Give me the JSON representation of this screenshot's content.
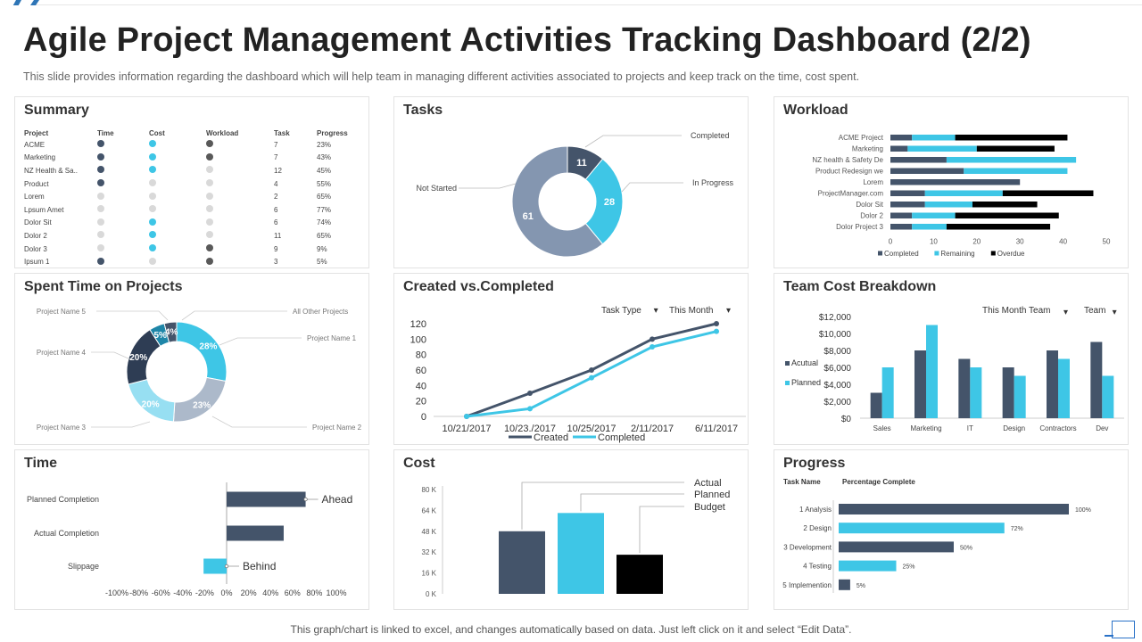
{
  "page": {
    "title": "Agile Project Management Activities Tracking Dashboard (2/2)",
    "subtitle": "This slide provides  information  regarding  the  dashboard  which will help team in managing different  activities associated to projects and keep track on the time, cost spent.",
    "footer": "This graph/chart is linked to excel,  and changes automatically based on data. Just left click on it and select “Edit Data”."
  },
  "colors": {
    "dark": "#44546a",
    "light": "#3ec6e6",
    "black": "#000000",
    "grey": "#d9d9d9",
    "darkdot": "#595959",
    "steel": "#8496b0",
    "navy": "#2e3d54"
  },
  "panels": {
    "summary": "Summary",
    "tasks": "Tasks",
    "workload": "Workload",
    "spent": "Spent Time on Projects",
    "created": "Created vs.Completed",
    "teamcost": "Team Cost Breakdown",
    "time": "Time",
    "cost": "Cost",
    "progress": "Progress"
  },
  "summary": {
    "headers": [
      "Project",
      "Time",
      "Cost",
      "Workload",
      "Task",
      "Progress"
    ],
    "rows": [
      {
        "project": "ACME",
        "time": "dark",
        "cost": "light",
        "workload": "darkdot",
        "task": "7",
        "progress": "23%"
      },
      {
        "project": "Marketing",
        "time": "dark",
        "cost": "light",
        "workload": "darkdot",
        "task": "7",
        "progress": "43%"
      },
      {
        "project": "NZ Health & Sa..",
        "time": "dark",
        "cost": "light",
        "workload": "grey",
        "task": "12",
        "progress": "45%"
      },
      {
        "project": "Product",
        "time": "dark",
        "cost": "grey",
        "workload": "grey",
        "task": "4",
        "progress": "55%"
      },
      {
        "project": "Lorem",
        "time": "grey",
        "cost": "grey",
        "workload": "grey",
        "task": "2",
        "progress": "65%"
      },
      {
        "project": "Lpsum Amet",
        "time": "grey",
        "cost": "grey",
        "workload": "grey",
        "task": "6",
        "progress": "77%"
      },
      {
        "project": "Dolor Sit",
        "time": "grey",
        "cost": "light",
        "workload": "grey",
        "task": "6",
        "progress": "74%"
      },
      {
        "project": "Dolor 2",
        "time": "grey",
        "cost": "light",
        "workload": "grey",
        "task": "11",
        "progress": "65%"
      },
      {
        "project": "Dolor 3",
        "time": "grey",
        "cost": "light",
        "workload": "darkdot",
        "task": "9",
        "progress": "9%"
      },
      {
        "project": "Ipsum 1",
        "time": "dark",
        "cost": "grey",
        "workload": "darkdot",
        "task": "3",
        "progress": "5%"
      }
    ]
  },
  "chart_data": [
    {
      "id": "tasks",
      "type": "pie",
      "donut": true,
      "title": "Tasks",
      "slices": [
        {
          "label": "Completed",
          "value": 11,
          "color": "#44546a"
        },
        {
          "label": "In Progress",
          "value": 28,
          "color": "#3ec6e6"
        },
        {
          "label": "Not Started",
          "value": 61,
          "color": "#8496b0"
        }
      ]
    },
    {
      "id": "workload",
      "type": "bar",
      "orientation": "horizontal",
      "stacked": true,
      "title": "Workload",
      "categories": [
        "ACME Project",
        "Marketing",
        "NZ health & Safety De",
        "Product Redesign we",
        "Lorem",
        "ProjectManager.com",
        "Dolor Sit",
        "Dolor 2",
        "Dolor Project 3"
      ],
      "series": [
        {
          "name": "Completed",
          "color": "#44546a",
          "values": [
            5,
            4,
            13,
            17,
            30,
            8,
            8,
            5,
            5
          ]
        },
        {
          "name": "Remaining",
          "color": "#3ec6e6",
          "values": [
            10,
            16,
            30,
            24,
            0,
            18,
            11,
            10,
            8
          ]
        },
        {
          "name": "Overdue",
          "color": "#000000",
          "values": [
            26,
            18,
            0,
            0,
            0,
            21,
            15,
            24,
            24
          ]
        }
      ],
      "xlim": [
        0,
        50
      ],
      "xticks": [
        "0",
        "10",
        "20",
        "30",
        "40",
        "50"
      ]
    },
    {
      "id": "spent",
      "type": "pie",
      "donut": true,
      "title": "Spent Time on Projects",
      "slices": [
        {
          "label": "Project Name 1",
          "value": 28,
          "text": "28%",
          "color": "#3ec6e6"
        },
        {
          "label": "Project Name 2",
          "value": 23,
          "text": "23%",
          "color": "#acb9ca"
        },
        {
          "label": "Project Name 3",
          "value": 20,
          "text": "20%",
          "color": "#97dff2"
        },
        {
          "label": "Project Name 4",
          "value": 20,
          "text": "20%",
          "color": "#2e3d54"
        },
        {
          "label": "Project Name 5",
          "value": 5,
          "text": "5%",
          "color": "#1e86a8"
        },
        {
          "label": "All Other Projects",
          "value": 4,
          "text": "4%",
          "color": "#44546a"
        }
      ]
    },
    {
      "id": "created",
      "type": "line",
      "title": "Created vs.Completed",
      "categories": [
        "10/21/2017",
        "10/23./2017",
        "10/25/2017",
        "2/11/2017",
        "6/11/2017"
      ],
      "x": [
        0,
        1,
        2,
        3,
        4
      ],
      "series": [
        {
          "name": "Created",
          "color": "#44546a",
          "values": [
            0,
            30,
            60,
            100,
            120
          ]
        },
        {
          "name": "Completed",
          "color": "#3ec6e6",
          "values": [
            0,
            10,
            50,
            90,
            110
          ]
        }
      ],
      "xpositions": [
        0,
        0.98,
        2.0,
        2.98,
        3.98
      ],
      "ylim": [
        0,
        120
      ],
      "yticks": [
        "0",
        "20",
        "40",
        "60",
        "80",
        "100",
        "120"
      ],
      "filters": [
        "Task Type",
        "This Month"
      ]
    },
    {
      "id": "teamcost",
      "type": "bar",
      "title": "Team Cost Breakdown",
      "categories": [
        "Sales",
        "Marketing",
        "IT",
        "Design",
        "Contractors",
        "Dev"
      ],
      "series": [
        {
          "name": "Acutual",
          "color": "#44546a",
          "values": [
            3000,
            8000,
            7000,
            6000,
            8000,
            9000
          ]
        },
        {
          "name": "Planned",
          "color": "#3ec6e6",
          "values": [
            6000,
            11000,
            6000,
            5000,
            7000,
            5000
          ]
        }
      ],
      "ylim": [
        0,
        12000
      ],
      "yticks": [
        "$0",
        "$2,000",
        "$4,000",
        "$6,000",
        "$8,000",
        "$10,000",
        "$12,000"
      ],
      "filters": [
        "This Month Team",
        "Team"
      ]
    },
    {
      "id": "time",
      "type": "bar",
      "orientation": "horizontal",
      "title": "Time",
      "categories": [
        "Planned Completion",
        "Actual Completion",
        "Slippage"
      ],
      "values": [
        72,
        52,
        -21
      ],
      "colors": [
        "#44546a",
        "#44546a",
        "#3ec6e6"
      ],
      "annotations": [
        {
          "row": 0,
          "text": "Ahead"
        },
        {
          "row": 2,
          "text": "Behind"
        }
      ],
      "xlim": [
        -100,
        100
      ],
      "xticks": [
        "-100%",
        "-80%",
        "-60%",
        "-40%",
        "-20%",
        "0%",
        "20%",
        "40%",
        "60%",
        "80%",
        "100%"
      ]
    },
    {
      "id": "cost",
      "type": "bar",
      "title": "Cost",
      "categories": [
        "Actual",
        "Planned",
        "Budget"
      ],
      "values": [
        48000,
        62000,
        30000
      ],
      "colors": [
        "#44546a",
        "#3ec6e6",
        "#000000"
      ],
      "ylim": [
        0,
        80000
      ],
      "yticks": [
        "0 K",
        "16 K",
        "32 K",
        "48 K",
        "64 K",
        "80 K"
      ]
    },
    {
      "id": "progress",
      "type": "bar",
      "orientation": "horizontal",
      "title": "Progress",
      "columns": [
        "Task Name",
        "Percentage Complete"
      ],
      "categories": [
        "1 Analysis",
        "2 Design",
        "3 Development",
        "4 Testing",
        "5 Implemention"
      ],
      "values": [
        100,
        72,
        50,
        25,
        5
      ],
      "labels": [
        "100%",
        "72%",
        "50%",
        "25%",
        "5%"
      ],
      "colors": [
        "#44546a",
        "#3ec6e6",
        "#44546a",
        "#3ec6e6",
        "#44546a"
      ],
      "xlim": [
        0,
        100
      ]
    }
  ]
}
